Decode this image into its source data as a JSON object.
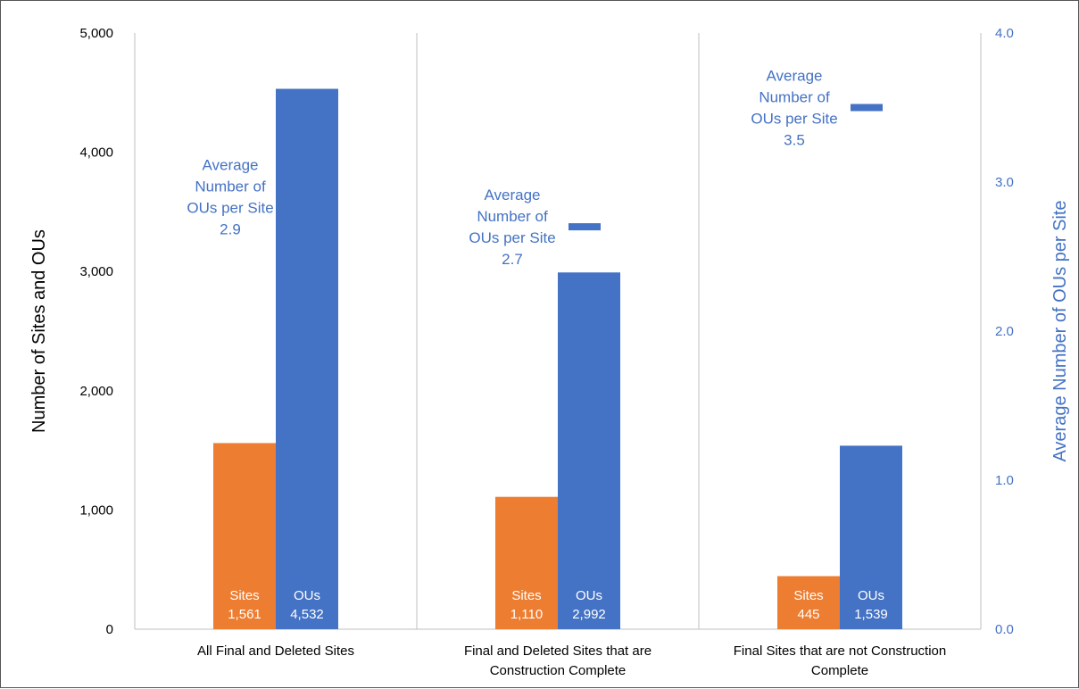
{
  "chart_data": {
    "type": "bar",
    "categories": [
      [
        "All Final and Deleted Sites"
      ],
      [
        "Final and Deleted Sites that are",
        "Construction Complete"
      ],
      [
        "Final Sites that are not Construction",
        "Complete"
      ]
    ],
    "series": [
      {
        "name": "Sites",
        "color": "#ED7D31",
        "values": [
          1561,
          1110,
          445
        ],
        "value_labels": [
          "1,561",
          "1,110",
          "445"
        ]
      },
      {
        "name": "OUs",
        "color": "#4472C4",
        "values": [
          4532,
          2992,
          1539
        ],
        "value_labels": [
          "4,532",
          "2,992",
          "1,539"
        ]
      }
    ],
    "secondary_series": {
      "type": "marker",
      "color": "#4472C4",
      "values": [
        2.9,
        2.7,
        3.5
      ],
      "label_lines": [
        "Average",
        "Number of",
        "OUs per Site"
      ],
      "value_labels": [
        "2.9",
        "2.7",
        "3.5"
      ]
    },
    "ylabel": "Number of Sites and OUs",
    "y2label": "Average Number of OUs per Site",
    "ylim": [
      0,
      5000
    ],
    "y2lim": [
      0,
      4.0
    ],
    "y_ticks": [
      0,
      1000,
      2000,
      3000,
      4000,
      5000
    ],
    "y_tick_labels": [
      "0",
      "1,000",
      "2,000",
      "3,000",
      "4,000",
      "5,000"
    ],
    "y2_ticks": [
      0,
      1.0,
      2.0,
      3.0,
      4.0
    ],
    "y2_tick_labels": [
      "0.0",
      "1.0",
      "2.0",
      "3.0",
      "4.0"
    ],
    "grid": false,
    "category_separators": true,
    "legend": "none"
  },
  "colors": {
    "axis_text": "#000000",
    "secondary_axis_text": "#4472C4",
    "separator": "#BFBFBF",
    "bar_label_text": "#FFFFFF"
  }
}
